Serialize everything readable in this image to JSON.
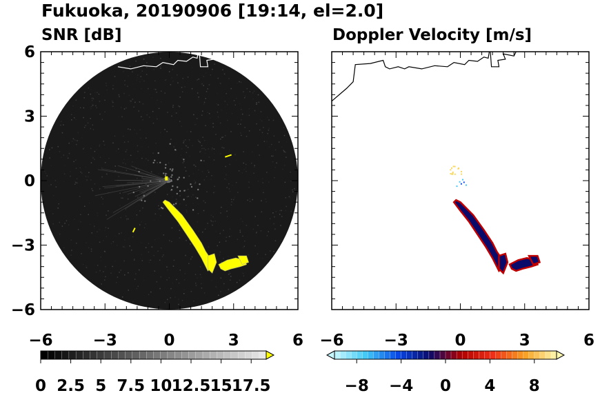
{
  "figure": {
    "title": "Fukuoka, 20190906 [19:14, el=2.0]"
  },
  "chart_data": [
    {
      "type": "heatmap",
      "title": "SNR [dB]",
      "xlim": [
        -6,
        6
      ],
      "ylim": [
        -6,
        6
      ],
      "x_ticks": [
        "−6",
        "−3",
        "0",
        "3",
        "6"
      ],
      "y_ticks": [
        "6",
        "3",
        "0",
        "−3",
        "−6"
      ],
      "range_ring_radius": 6,
      "background_color": "#1a1a1a",
      "echo_color": "#ffff00",
      "colorbar": {
        "min": 0,
        "max": 18.75,
        "labels": [
          "0",
          "2.5",
          "5",
          "7.5",
          "10",
          "12.5",
          "15",
          "17.5"
        ],
        "extend": "max",
        "colors": [
          "#000000",
          "#ffff00"
        ]
      }
    },
    {
      "type": "heatmap",
      "title": "Doppler Velocity [m/s]",
      "xlim": [
        -6,
        6
      ],
      "ylim": [
        -6,
        6
      ],
      "x_ticks": [
        "−6",
        "−3",
        "0",
        "3",
        "6"
      ],
      "y_ticks": [],
      "colorbar": {
        "min": -10,
        "max": 10,
        "labels": [
          "−8",
          "−4",
          "0",
          "4",
          "8"
        ],
        "extend": "both",
        "colors": [
          "#c8f8ff",
          "#40c8f8",
          "#0848e8",
          "#0a0a6a",
          "#b00000",
          "#f03018",
          "#f8a020",
          "#fff8b0"
        ]
      }
    }
  ]
}
